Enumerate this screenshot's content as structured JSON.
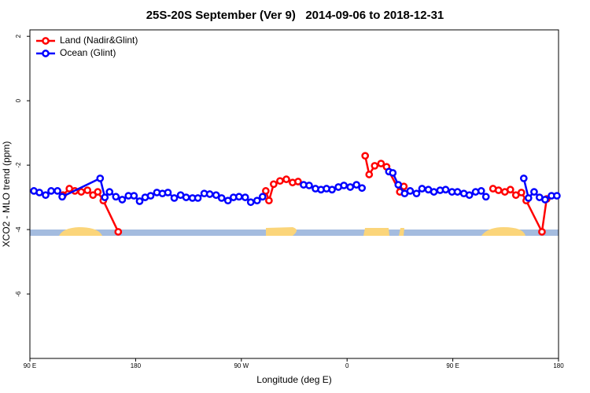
{
  "chart_data": {
    "type": "line",
    "title": "25S-20S September (Ver 9)   2014-09-06 to 2018-12-31",
    "x_label": "Longitude (deg E)",
    "y_label": "XCO2 - MLO trend (ppm)",
    "xlim": [
      90,
      540
    ],
    "ylim": [
      -8.0,
      2.2
    ],
    "xticks": [
      {
        "value": 90,
        "label": "90 E"
      },
      180,
      {
        "value": 270,
        "label": "90 W"
      },
      {
        "value": 360,
        "label": "0"
      },
      {
        "value": 450,
        "label": "90 E"
      },
      {
        "value": 540,
        "label": "180"
      }
    ],
    "yticks": [
      2,
      0,
      -2,
      -4,
      -6
    ],
    "legend": "top-left",
    "series": [
      {
        "name": "Land (Nadir&Glint)",
        "color": "#ff0000",
        "x": [
          118.2,
          123.6,
          128.3,
          133.7,
          139.0,
          143.7,
          147.8,
          152.5,
          165.2,
          null,
          290.8,
          293.5,
          297.5,
          302.9,
          308.3,
          313.6,
          318.3,
          null,
          375.4,
          378.8,
          383.5,
          388.9,
          393.6,
          404.9,
          408.3,
          null,
          484.2,
          488.9,
          494.3,
          499.0,
          503.7,
          508.4,
          512.5,
          525.9,
          529.9
        ],
        "values": [
          -2.93,
          -2.73,
          -2.8,
          -2.83,
          -2.78,
          -2.93,
          -2.83,
          -3.1,
          -4.07,
          null,
          -2.8,
          -3.1,
          -2.59,
          -2.49,
          -2.44,
          -2.54,
          -2.51,
          null,
          -1.71,
          -2.29,
          -2.02,
          -1.95,
          -2.05,
          -2.83,
          -2.66,
          null,
          -2.73,
          -2.78,
          -2.83,
          -2.76,
          -2.93,
          -2.85,
          -3.1,
          -4.07,
          -3.05
        ]
      },
      {
        "name": "Ocean (Glint)",
        "color": "#0000ff",
        "x": [
          93.4,
          98.1,
          103.4,
          108.1,
          113.5,
          117.5,
          149.8,
          153.8,
          157.8,
          163.2,
          168.6,
          173.9,
          178.6,
          183.4,
          188.1,
          192.8,
          198.1,
          202.8,
          207.5,
          212.9,
          218.3,
          223.0,
          228.4,
          233.0,
          238.4,
          243.1,
          248.5,
          253.2,
          258.6,
          263.3,
          268.0,
          273.3,
          278.0,
          283.4,
          288.1,
          null,
          323.0,
          327.7,
          333.1,
          337.8,
          342.5,
          347.2,
          352.6,
          357.3,
          362.7,
          368.0,
          372.7,
          null,
          395.6,
          398.9,
          403.6,
          409.0,
          413.7,
          419.1,
          423.8,
          429.2,
          433.9,
          439.2,
          443.9,
          449.3,
          454.0,
          459.4,
          464.1,
          469.4,
          474.2,
          478.2,
          null,
          510.4,
          514.4,
          519.2,
          523.8,
          528.6,
          534.0,
          538.6
        ],
        "values": [
          -2.8,
          -2.85,
          -2.93,
          -2.8,
          -2.8,
          -2.98,
          -2.41,
          -3.0,
          -2.83,
          -2.98,
          -3.07,
          -2.95,
          -2.95,
          -3.12,
          -3.0,
          -2.95,
          -2.85,
          -2.88,
          -2.85,
          -3.02,
          -2.93,
          -3.0,
          -3.02,
          -3.02,
          -2.88,
          -2.9,
          -2.93,
          -3.02,
          -3.1,
          -3.0,
          -2.98,
          -3.0,
          -3.15,
          -3.1,
          -2.98,
          null,
          -2.61,
          -2.63,
          -2.73,
          -2.76,
          -2.73,
          -2.76,
          -2.68,
          -2.63,
          -2.68,
          -2.61,
          -2.71,
          null,
          -2.2,
          -2.24,
          -2.61,
          -2.88,
          -2.8,
          -2.88,
          -2.73,
          -2.76,
          -2.83,
          -2.78,
          -2.76,
          -2.83,
          -2.83,
          -2.88,
          -2.93,
          -2.83,
          -2.8,
          -2.98,
          null,
          -2.41,
          -3.02,
          -2.83,
          -3.0,
          -3.07,
          -2.95,
          -2.95
        ]
      }
    ]
  }
}
